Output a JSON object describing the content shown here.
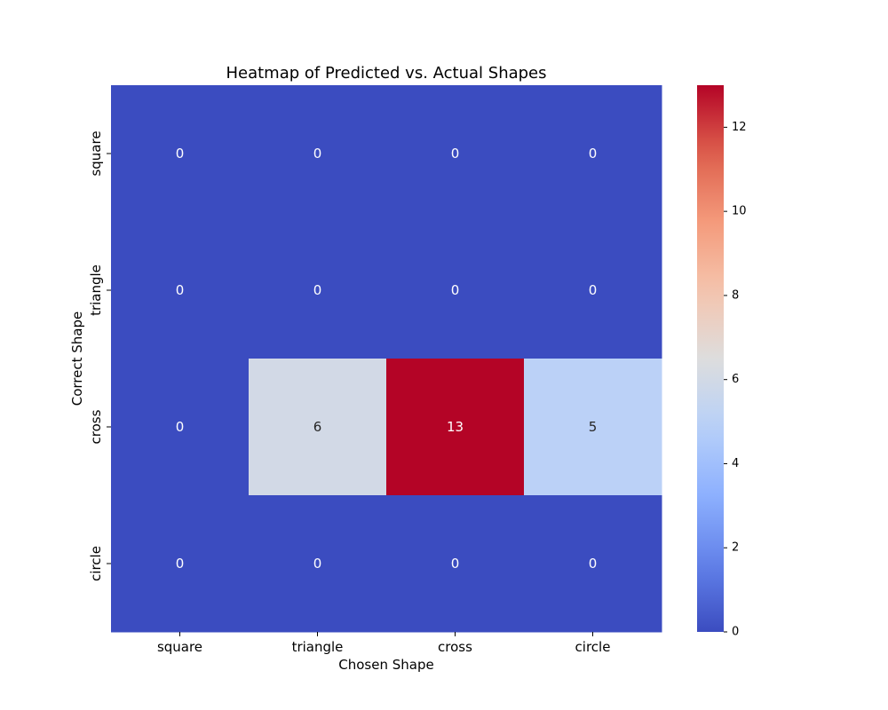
{
  "chart_data": {
    "type": "heatmap",
    "title": "Heatmap of Predicted vs. Actual Shapes",
    "xlabel": "Chosen Shape",
    "ylabel": "Correct Shape",
    "x_categories": [
      "square",
      "triangle",
      "cross",
      "circle"
    ],
    "y_categories": [
      "square",
      "triangle",
      "cross",
      "circle"
    ],
    "values": [
      [
        0,
        0,
        0,
        0
      ],
      [
        0,
        0,
        0,
        0
      ],
      [
        0,
        6,
        13,
        5
      ],
      [
        0,
        0,
        0,
        0
      ]
    ],
    "colormap": "coolwarm",
    "color_range": [
      0,
      13
    ],
    "colorbar_ticks": [
      "0",
      "2",
      "4",
      "6",
      "8",
      "10",
      "12"
    ],
    "annotations": true
  }
}
